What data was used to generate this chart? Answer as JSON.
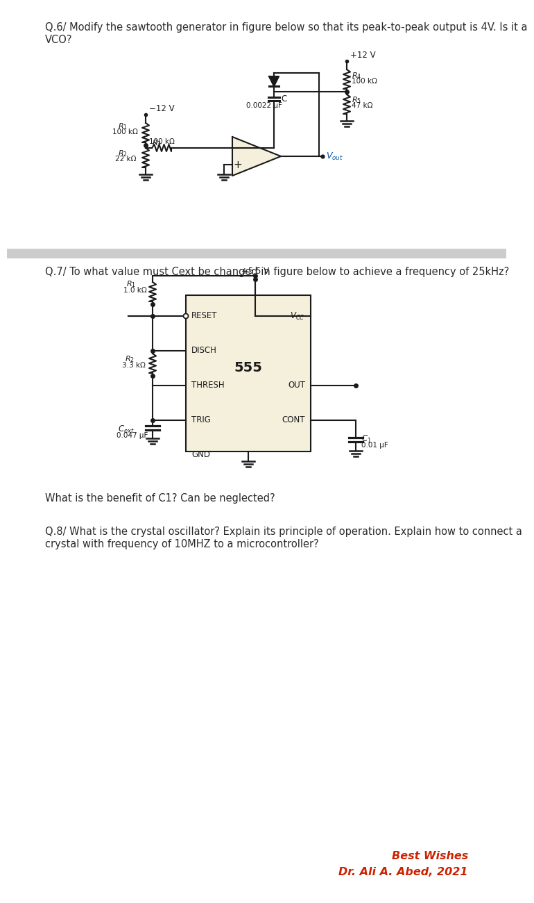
{
  "bg_color": "#ffffff",
  "divider_color": "#cccccc",
  "text_color": "#2a2a2a",
  "red_color": "#cc2200",
  "circuit_color": "#1a1a1a",
  "component_fill": "#f5f0dc",
  "vout_color": "#0055aa",
  "q6_text_line1": "Q.6/ Modify the sawtooth generator in figure below so that its peak-to-peak output is 4V. Is it a",
  "q6_text_line2": "VCO?",
  "q7_text": "Q.7/ To what value must Cext be changed in figure below to achieve a frequency of 25kHz?",
  "q7b_text": "What is the benefit of C1? Can be neglected?",
  "q8_text_line1": "Q.8/ What is the crystal oscillator? Explain its principle of operation. Explain how to connect a",
  "q8_text_line2": "crystal with frequency of 10MHZ to a microcontroller?",
  "best_wishes": "Best Wishes",
  "author": "Dr. Ali A. Abed, 2021"
}
